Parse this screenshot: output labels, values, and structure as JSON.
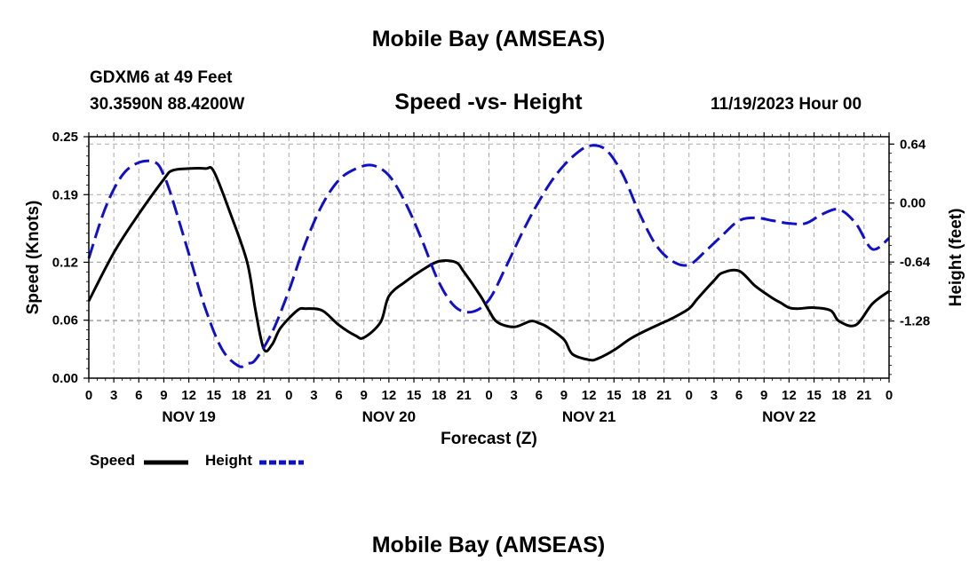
{
  "page": {
    "title_top": "Mobile Bay (AMSEAS)",
    "title_bottom": "Mobile Bay (AMSEAS)",
    "station": "GDXM6 at 49 Feet",
    "coords": "30.3590N  88.4200W",
    "subtitle": "Speed -vs- Height",
    "datetime": "11/19/2023 Hour 00"
  },
  "colors": {
    "speed": "#000000",
    "height": "#1010cc",
    "grid": "#aaaaaa"
  },
  "chart_data": {
    "type": "line",
    "title": "Speed -vs- Height",
    "xlabel": "Forecast (Z)",
    "ylabel": "Speed (Knots)",
    "y2label": "Height (feet)",
    "xlim": [
      0,
      96
    ],
    "ylim": [
      0,
      0.25
    ],
    "y2lim": [
      -1.9,
      0.72
    ],
    "x_ticks": [
      0,
      3,
      6,
      9,
      12,
      15,
      18,
      21,
      24,
      27,
      30,
      33,
      36,
      39,
      42,
      45,
      48,
      51,
      54,
      57,
      60,
      63,
      66,
      69,
      72,
      75,
      78,
      81,
      84,
      87,
      90,
      93,
      96
    ],
    "x_tick_labels": [
      "0",
      "3",
      "6",
      "9",
      "12",
      "15",
      "18",
      "21",
      "0",
      "3",
      "6",
      "9",
      "12",
      "15",
      "18",
      "21",
      "0",
      "3",
      "6",
      "9",
      "12",
      "15",
      "18",
      "21",
      "0",
      "3",
      "6",
      "9",
      "12",
      "15",
      "18",
      "21",
      "0"
    ],
    "y_ticks": [
      0.0,
      0.06,
      0.12,
      0.19,
      0.25
    ],
    "y_tick_labels": [
      "0.00",
      "0.06",
      "0.12",
      "0.19",
      "0.25"
    ],
    "y2_ticks": [
      0.64,
      0.0,
      -0.64,
      -1.28
    ],
    "y2_tick_labels": [
      "0.64",
      "0.00",
      "-0.64",
      "-1.28"
    ],
    "day_labels": [
      {
        "label": "NOV 19",
        "x": 12
      },
      {
        "label": "NOV 20",
        "x": 36
      },
      {
        "label": "NOV 21",
        "x": 60
      },
      {
        "label": "NOV 22",
        "x": 84
      }
    ],
    "series": [
      {
        "name": "Speed",
        "axis": "left",
        "style": "solid",
        "x": [
          0,
          3,
          6,
          9,
          10,
          12,
          14,
          15,
          17,
          19,
          20,
          21,
          22,
          23,
          25,
          26,
          28,
          30,
          32,
          33,
          35,
          36,
          38,
          40,
          42,
          44,
          45,
          47,
          48,
          49,
          51,
          53,
          54,
          55,
          57,
          58,
          60,
          61,
          63,
          65,
          67,
          69,
          70,
          72,
          73,
          75,
          76,
          78,
          80,
          82,
          83,
          84,
          85,
          87,
          89,
          90,
          92,
          94,
          96
        ],
        "y": [
          0.08,
          0.13,
          0.17,
          0.206,
          0.215,
          0.217,
          0.217,
          0.214,
          0.17,
          0.12,
          0.07,
          0.03,
          0.035,
          0.052,
          0.07,
          0.072,
          0.07,
          0.055,
          0.044,
          0.042,
          0.058,
          0.085,
          0.1,
          0.112,
          0.121,
          0.12,
          0.11,
          0.085,
          0.07,
          0.058,
          0.053,
          0.059,
          0.057,
          0.053,
          0.04,
          0.025,
          0.019,
          0.02,
          0.029,
          0.041,
          0.05,
          0.058,
          0.062,
          0.072,
          0.082,
          0.101,
          0.109,
          0.111,
          0.095,
          0.083,
          0.078,
          0.073,
          0.072,
          0.073,
          0.07,
          0.059,
          0.055,
          0.077,
          0.09
        ]
      },
      {
        "name": "Height",
        "axis": "right",
        "style": "dashed",
        "x": [
          0,
          2,
          4,
          6,
          8,
          9,
          10,
          12,
          14,
          16,
          18,
          19,
          20,
          22,
          24,
          26,
          28,
          30,
          32,
          34,
          36,
          38,
          40,
          42,
          44,
          46,
          48,
          50,
          52,
          54,
          56,
          58,
          60,
          62,
          64,
          66,
          68,
          70,
          72,
          74,
          76,
          78,
          80,
          82,
          84,
          86,
          88,
          90,
          92,
          94,
          96
        ],
        "y": [
          -0.6,
          -0.05,
          0.3,
          0.44,
          0.44,
          0.3,
          0.05,
          -0.55,
          -1.15,
          -1.59,
          -1.77,
          -1.74,
          -1.7,
          -1.4,
          -0.95,
          -0.43,
          -0.02,
          0.25,
          0.37,
          0.41,
          0.3,
          0.0,
          -0.41,
          -0.86,
          -1.13,
          -1.18,
          -1.05,
          -0.7,
          -0.32,
          0.02,
          0.3,
          0.5,
          0.62,
          0.58,
          0.32,
          -0.1,
          -0.45,
          -0.63,
          -0.67,
          -0.52,
          -0.35,
          -0.19,
          -0.16,
          -0.19,
          -0.22,
          -0.22,
          -0.12,
          -0.07,
          -0.22,
          -0.5,
          -0.38
        ]
      }
    ]
  }
}
